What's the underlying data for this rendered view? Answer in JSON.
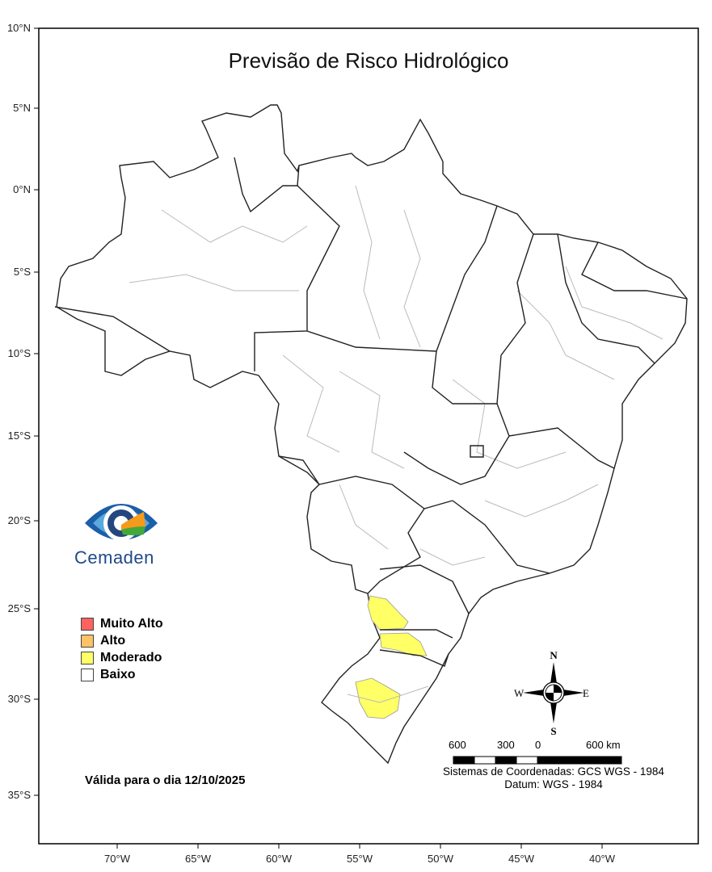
{
  "title": "Previsão de Risco Hidrológico",
  "latitude_ticks": [
    "10°N",
    "5°N",
    "0°N",
    "5°S",
    "10°S",
    "15°S",
    "20°S",
    "25°S",
    "30°S",
    "35°S"
  ],
  "longitude_ticks": [
    "70°W",
    "65°W",
    "60°W",
    "55°W",
    "50°W",
    "45°W",
    "40°W"
  ],
  "logo": {
    "text": "Cemaden"
  },
  "legend": {
    "items": [
      {
        "label": "Muito Alto",
        "color": "#ff6161"
      },
      {
        "label": "Alto",
        "color": "#ffc266"
      },
      {
        "label": "Moderado",
        "color": "#ffff66"
      },
      {
        "label": "Baixo",
        "color": "#ffffff"
      }
    ]
  },
  "valid_text": "Válida para o dia 12/10/2025",
  "compass": {
    "n": "N",
    "s": "S",
    "e": "E",
    "w": "W"
  },
  "scale_bar": {
    "labels": [
      "600",
      "300",
      "0",
      "600 km"
    ]
  },
  "crs_text": "Sistemas de Coordenadas: GCS WGS - 1984",
  "datum_text": "Datum: WGS - 1984"
}
